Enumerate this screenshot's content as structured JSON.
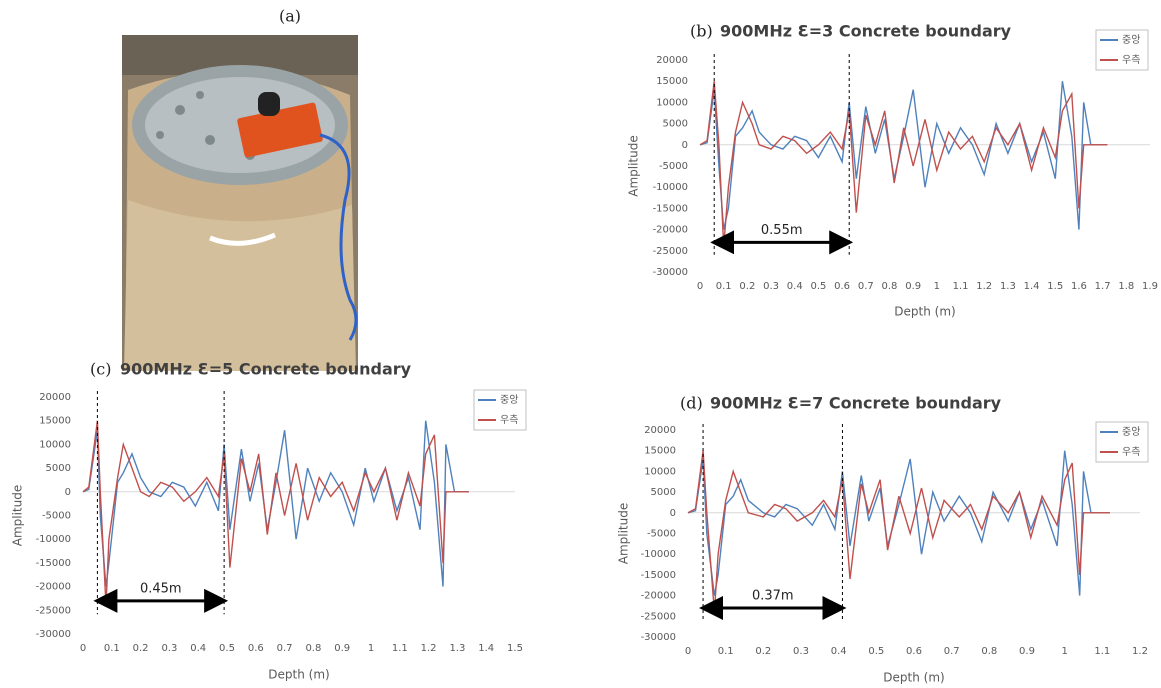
{
  "panel_a": {
    "label": "(a)"
  },
  "chart_data": [
    {
      "type": "line",
      "label": "(b)",
      "title": "900MHz Ɛ=3 Concrete boundary",
      "x_label": "Depth (m)",
      "y_label": "Amplitude",
      "x": [
        0,
        0.03,
        0.06,
        0.08,
        0.1,
        0.12,
        0.15,
        0.18,
        0.22,
        0.25,
        0.3,
        0.35,
        0.4,
        0.45,
        0.5,
        0.55,
        0.6,
        0.63,
        0.66,
        0.7,
        0.74,
        0.78,
        0.82,
        0.86,
        0.9,
        0.95,
        1.0,
        1.05,
        1.1,
        1.15,
        1.2,
        1.25,
        1.3,
        1.35,
        1.4,
        1.45,
        1.5,
        1.53,
        1.57,
        1.6,
        1.62,
        1.65,
        1.72
      ],
      "series": [
        {
          "name": "중앙",
          "color": "#4f81bd",
          "values": [
            0,
            500,
            13000,
            -5000,
            -20000,
            -15000,
            2000,
            4000,
            8000,
            3000,
            0,
            -1000,
            2000,
            1000,
            -3000,
            2000,
            -4000,
            10000,
            -8000,
            9000,
            -2000,
            6000,
            -8000,
            2000,
            13000,
            -10000,
            5000,
            -2000,
            4000,
            0,
            -7000,
            5000,
            -2000,
            5000,
            -4000,
            3000,
            -8000,
            15000,
            2000,
            -20000,
            10000,
            0,
            0
          ]
        },
        {
          "name": "우측",
          "color": "#c0504d",
          "values": [
            0,
            1000,
            15000,
            0,
            -24000,
            -10000,
            3000,
            10000,
            5000,
            0,
            -1000,
            2000,
            1000,
            -2000,
            0,
            3000,
            -1000,
            8000,
            -16000,
            7000,
            0,
            8000,
            -9000,
            4000,
            -5000,
            6000,
            -6000,
            3000,
            -1000,
            2000,
            -4000,
            4000,
            0,
            5000,
            -6000,
            4000,
            -3000,
            8000,
            12000,
            -15000,
            0,
            0,
            0
          ]
        }
      ],
      "xlim": [
        0,
        1.9
      ],
      "xticks": [
        0,
        0.1,
        0.2,
        0.3,
        0.4,
        0.5,
        0.6,
        0.7,
        0.8,
        0.9,
        1,
        1.1,
        1.2,
        1.3,
        1.4,
        1.5,
        1.6,
        1.7,
        1.8,
        1.9
      ],
      "ylim": [
        -30000,
        20000
      ],
      "yticks": [
        -30000,
        -25000,
        -20000,
        -15000,
        -10000,
        -5000,
        0,
        5000,
        10000,
        15000,
        20000
      ],
      "grid": false,
      "vlines": [
        0.06,
        0.63
      ],
      "annotation": "0.55m"
    },
    {
      "type": "line",
      "label": "(c)",
      "title": "900MHz Ɛ=5 Concrete boundary",
      "x_label": "Depth (m)",
      "y_label": "Amplitude",
      "x": [
        0,
        0.02,
        0.05,
        0.06,
        0.08,
        0.09,
        0.12,
        0.14,
        0.17,
        0.2,
        0.23,
        0.27,
        0.31,
        0.35,
        0.39,
        0.43,
        0.47,
        0.49,
        0.51,
        0.55,
        0.58,
        0.61,
        0.64,
        0.67,
        0.7,
        0.74,
        0.78,
        0.82,
        0.86,
        0.9,
        0.94,
        0.98,
        1.01,
        1.05,
        1.09,
        1.13,
        1.17,
        1.19,
        1.22,
        1.25,
        1.26,
        1.29,
        1.34
      ],
      "series": [
        {
          "name": "중앙",
          "color": "#4f81bd",
          "values": [
            0,
            500,
            13000,
            -5000,
            -20000,
            -15000,
            2000,
            4000,
            8000,
            3000,
            0,
            -1000,
            2000,
            1000,
            -3000,
            2000,
            -4000,
            10000,
            -8000,
            9000,
            -2000,
            6000,
            -8000,
            2000,
            13000,
            -10000,
            5000,
            -2000,
            4000,
            0,
            -7000,
            5000,
            -2000,
            5000,
            -4000,
            3000,
            -8000,
            15000,
            2000,
            -20000,
            10000,
            0,
            0
          ]
        },
        {
          "name": "우측",
          "color": "#c0504d",
          "values": [
            0,
            1000,
            15000,
            0,
            -24000,
            -10000,
            3000,
            10000,
            5000,
            0,
            -1000,
            2000,
            1000,
            -2000,
            0,
            3000,
            -1000,
            8000,
            -16000,
            7000,
            0,
            8000,
            -9000,
            4000,
            -5000,
            6000,
            -6000,
            3000,
            -1000,
            2000,
            -4000,
            4000,
            0,
            5000,
            -6000,
            4000,
            -3000,
            8000,
            12000,
            -15000,
            0,
            0,
            0
          ]
        }
      ],
      "xlim": [
        0,
        1.5
      ],
      "xticks": [
        0,
        0.1,
        0.2,
        0.3,
        0.4,
        0.5,
        0.6,
        0.7,
        0.8,
        0.9,
        1,
        1.1,
        1.2,
        1.3,
        1.4,
        1.5
      ],
      "ylim": [
        -30000,
        20000
      ],
      "yticks": [
        -30000,
        -25000,
        -20000,
        -15000,
        -10000,
        -5000,
        0,
        5000,
        10000,
        15000,
        20000
      ],
      "grid": false,
      "vlines": [
        0.05,
        0.49
      ],
      "annotation": "0.45m"
    },
    {
      "type": "line",
      "label": "(d)",
      "title": "900MHz Ɛ=7 Concrete boundary",
      "x_label": "Depth (m)",
      "y_label": "Amplitude",
      "x": [
        0,
        0.02,
        0.04,
        0.05,
        0.07,
        0.08,
        0.1,
        0.12,
        0.14,
        0.16,
        0.2,
        0.23,
        0.26,
        0.29,
        0.33,
        0.36,
        0.39,
        0.41,
        0.43,
        0.46,
        0.48,
        0.51,
        0.53,
        0.56,
        0.59,
        0.62,
        0.65,
        0.68,
        0.72,
        0.75,
        0.78,
        0.81,
        0.85,
        0.88,
        0.91,
        0.94,
        0.98,
        1.0,
        1.02,
        1.04,
        1.05,
        1.07,
        1.12
      ],
      "series": [
        {
          "name": "중앙",
          "color": "#4f81bd",
          "values": [
            0,
            500,
            13000,
            -5000,
            -20000,
            -15000,
            2000,
            4000,
            8000,
            3000,
            0,
            -1000,
            2000,
            1000,
            -3000,
            2000,
            -4000,
            10000,
            -8000,
            9000,
            -2000,
            6000,
            -8000,
            2000,
            13000,
            -10000,
            5000,
            -2000,
            4000,
            0,
            -7000,
            5000,
            -2000,
            5000,
            -4000,
            3000,
            -8000,
            15000,
            2000,
            -20000,
            10000,
            0,
            0
          ]
        },
        {
          "name": "우측",
          "color": "#c0504d",
          "values": [
            0,
            1000,
            15000,
            0,
            -24000,
            -10000,
            3000,
            10000,
            5000,
            0,
            -1000,
            2000,
            1000,
            -2000,
            0,
            3000,
            -1000,
            8000,
            -16000,
            7000,
            0,
            8000,
            -9000,
            4000,
            -5000,
            6000,
            -6000,
            3000,
            -1000,
            2000,
            -4000,
            4000,
            0,
            5000,
            -6000,
            4000,
            -3000,
            8000,
            12000,
            -15000,
            0,
            0,
            0
          ]
        }
      ],
      "xlim": [
        0,
        1.2
      ],
      "xticks": [
        0,
        0.1,
        0.2,
        0.3,
        0.4,
        0.5,
        0.6,
        0.7,
        0.8,
        0.9,
        1,
        1.1,
        1.2
      ],
      "ylim": [
        -30000,
        20000
      ],
      "yticks": [
        -30000,
        -25000,
        -20000,
        -15000,
        -10000,
        -5000,
        0,
        5000,
        10000,
        15000,
        20000
      ],
      "grid": false,
      "vlines": [
        0.04,
        0.41
      ],
      "annotation": "0.37m"
    }
  ]
}
